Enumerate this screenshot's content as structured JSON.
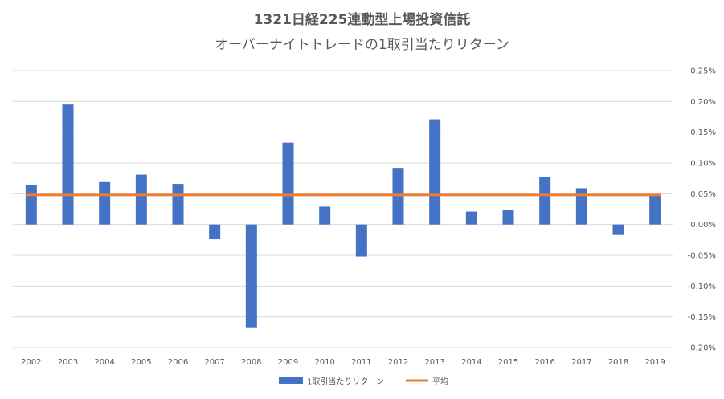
{
  "chart_data": {
    "type": "bar",
    "title": "1321日経225連動型上場投資信託",
    "subtitle": "オーバーナイトトレードの1取引当たりリターン",
    "categories": [
      "2002",
      "2003",
      "2004",
      "2005",
      "2006",
      "2007",
      "2008",
      "2009",
      "2010",
      "2011",
      "2012",
      "2013",
      "2014",
      "2015",
      "2016",
      "2017",
      "2018",
      "2019"
    ],
    "series": [
      {
        "name": "1取引当たりリターン",
        "kind": "bar",
        "color": "#4472C4",
        "values": [
          0.064,
          0.195,
          0.069,
          0.081,
          0.066,
          -0.024,
          -0.167,
          0.133,
          0.029,
          -0.052,
          0.092,
          0.171,
          0.021,
          0.023,
          0.077,
          0.059,
          -0.017,
          0.047
        ]
      },
      {
        "name": "平均",
        "kind": "line",
        "color": "#ED7D31",
        "value": 0.048
      }
    ],
    "y_unit": "%",
    "ylim": [
      -0.2,
      0.25
    ],
    "yticks": [
      "0.25%",
      "0.20%",
      "0.15%",
      "0.10%",
      "0.05%",
      "0.00%",
      "-0.05%",
      "-0.10%",
      "-0.15%",
      "-0.20%"
    ],
    "ytick_values": [
      0.25,
      0.2,
      0.15,
      0.1,
      0.05,
      0.0,
      -0.05,
      -0.1,
      -0.15,
      -0.2
    ],
    "y_axis_side": "right",
    "grid": true,
    "legend_position": "bottom"
  }
}
